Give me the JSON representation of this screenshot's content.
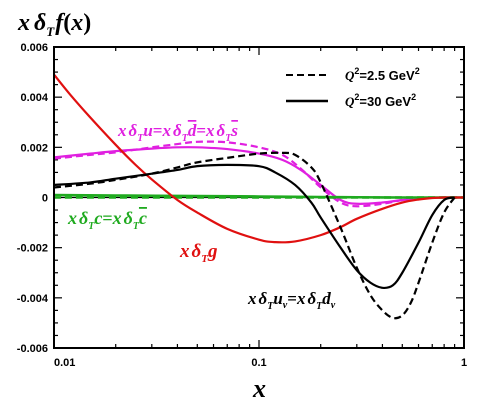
{
  "chart_data": {
    "type": "line",
    "ylabel": "xδTf(x)",
    "xlabel": "x",
    "xscale": "log",
    "xlim": [
      0.01,
      1
    ],
    "ylim": [
      -0.006,
      0.006
    ],
    "x_ticks": [
      "0.01",
      "0.1",
      "1"
    ],
    "y_ticks": [
      "0.006",
      "0.004",
      "0.002",
      "0",
      "-0.002",
      "-0.004",
      "-0.006"
    ],
    "legend": {
      "placement": "top-right",
      "entries": [
        {
          "label": "Q²=2.5 GeV²",
          "style": "dashed"
        },
        {
          "label": "Q²=30  GeV²",
          "style": "solid"
        }
      ]
    },
    "annotations": [
      {
        "text": "xδTu=xδTd̄=xδTs̄",
        "color": "#e020e0"
      },
      {
        "text": "xδTc=xδTc̄",
        "color": "#1faa1f"
      },
      {
        "text": "xδTg",
        "color": "#e01010"
      },
      {
        "text": "xδTuv=xδTdv",
        "color": "#000000"
      }
    ],
    "series": [
      {
        "group": "xδTu=xδTd̄=xδTs̄",
        "q2": "2.5",
        "color": "#e020e0",
        "style": "dashed",
        "x": [
          0.01,
          0.015,
          0.02,
          0.03,
          0.04,
          0.05,
          0.07,
          0.1,
          0.13,
          0.16,
          0.2,
          0.25,
          0.3,
          0.4,
          0.5,
          0.6,
          0.7,
          0.8,
          0.9,
          1.0
        ],
        "y": [
          0.00155,
          0.0017,
          0.0018,
          0.002,
          0.00213,
          0.00222,
          0.0022,
          0.002,
          0.0017,
          0.00115,
          0.0004,
          -0.0002,
          -0.00035,
          -0.00025,
          -0.0001,
          -4e-05,
          -1e-05,
          0,
          0,
          0
        ]
      },
      {
        "group": "xδTu=xδTd̄=xδTs̄",
        "q2": "30",
        "color": "#e020e0",
        "style": "solid",
        "x": [
          0.01,
          0.015,
          0.02,
          0.03,
          0.04,
          0.05,
          0.07,
          0.1,
          0.13,
          0.16,
          0.2,
          0.25,
          0.3,
          0.4,
          0.5,
          0.6,
          0.7,
          0.8,
          0.9,
          1.0
        ],
        "y": [
          0.0016,
          0.00175,
          0.00185,
          0.00195,
          0.002,
          0.002,
          0.00193,
          0.00175,
          0.0015,
          0.0011,
          0.0005,
          -0.0001,
          -0.00025,
          -0.0002,
          -0.0001,
          -4e-05,
          -1e-05,
          0,
          0,
          0
        ]
      },
      {
        "group": "xδTc=xδTc̄",
        "q2": "2.5",
        "color": "#1faa1f",
        "style": "dashed",
        "x": [
          0.01,
          0.1,
          1.0
        ],
        "y": [
          0,
          0,
          0
        ]
      },
      {
        "group": "xδTc=xδTc̄",
        "q2": "30",
        "color": "#1faa1f",
        "style": "solid",
        "x": [
          0.01,
          0.02,
          0.05,
          0.1,
          0.2,
          0.3,
          0.5,
          0.7,
          1.0
        ],
        "y": [
          0.0001,
          8e-05,
          6e-05,
          4e-05,
          2e-05,
          1e-05,
          0,
          0,
          0
        ]
      },
      {
        "group": "xδTg",
        "q2": "30",
        "color": "#e01010",
        "style": "solid",
        "x": [
          0.01,
          0.012,
          0.015,
          0.02,
          0.025,
          0.03,
          0.04,
          0.05,
          0.07,
          0.1,
          0.12,
          0.15,
          0.2,
          0.25,
          0.3,
          0.4,
          0.5,
          0.6,
          0.7,
          0.8,
          0.9,
          1.0
        ],
        "y": [
          0.0049,
          0.0041,
          0.0032,
          0.0021,
          0.0013,
          0.00072,
          -0.0001,
          -0.0006,
          -0.00125,
          -0.00168,
          -0.00178,
          -0.00175,
          -0.0015,
          -0.00118,
          -0.00085,
          -0.00045,
          -0.0002,
          -8e-05,
          -2e-05,
          0,
          0,
          0
        ]
      },
      {
        "group": "xδTuv=xδTdv",
        "q2": "2.5",
        "color": "#000000",
        "style": "dashed",
        "x": [
          0.01,
          0.015,
          0.02,
          0.03,
          0.04,
          0.05,
          0.07,
          0.1,
          0.13,
          0.15,
          0.18,
          0.2,
          0.25,
          0.3,
          0.35,
          0.4,
          0.45,
          0.5,
          0.55,
          0.6,
          0.7,
          0.8,
          0.9
        ],
        "y": [
          0.0004,
          0.00055,
          0.0007,
          0.00095,
          0.0012,
          0.0014,
          0.00158,
          0.00175,
          0.00178,
          0.0017,
          0.0012,
          0.0006,
          -0.0012,
          -0.0028,
          -0.0039,
          -0.0045,
          -0.0048,
          -0.0047,
          -0.0042,
          -0.0034,
          -0.0018,
          -0.0006,
          0
        ]
      },
      {
        "group": "xδTuv=xδTdv",
        "q2": "30",
        "color": "#000000",
        "style": "solid",
        "x": [
          0.01,
          0.015,
          0.02,
          0.03,
          0.04,
          0.05,
          0.07,
          0.1,
          0.12,
          0.15,
          0.18,
          0.2,
          0.25,
          0.3,
          0.35,
          0.4,
          0.45,
          0.5,
          0.6,
          0.7,
          0.8,
          0.9
        ],
        "y": [
          0.0005,
          0.0006,
          0.00075,
          0.00095,
          0.0011,
          0.00125,
          0.0013,
          0.00125,
          0.001,
          0.0005,
          -0.0002,
          -0.0008,
          -0.002,
          -0.0029,
          -0.0034,
          -0.0036,
          -0.0035,
          -0.003,
          -0.0018,
          -0.0007,
          -0.0001,
          0
        ]
      }
    ]
  }
}
